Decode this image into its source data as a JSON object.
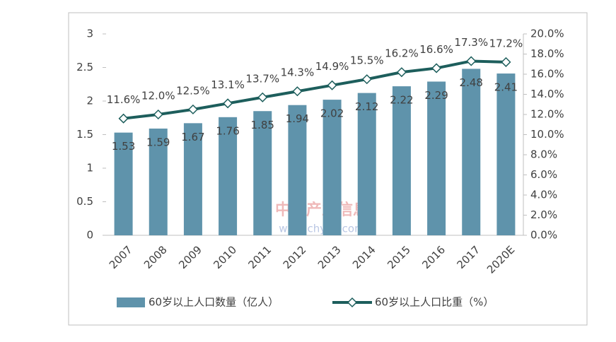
{
  "chart_data": {
    "type": "bar",
    "categories": [
      "2007",
      "2008",
      "2009",
      "2010",
      "2011",
      "2012",
      "2013",
      "2014",
      "2015",
      "2016",
      "2017",
      "2020E"
    ],
    "series": [
      {
        "name": "60岁以上人口数量（亿人）",
        "type": "bar",
        "color": "#5f93ab",
        "values": [
          1.53,
          1.59,
          1.67,
          1.76,
          1.85,
          1.94,
          2.02,
          2.12,
          2.22,
          2.29,
          2.48,
          2.41
        ]
      },
      {
        "name": "60岁以上人口比重（%）",
        "type": "line",
        "axis": "y2",
        "color": "#1d5e5c",
        "values": [
          11.6,
          12.0,
          12.5,
          13.1,
          13.7,
          14.3,
          14.9,
          15.5,
          16.2,
          16.6,
          17.3,
          17.2
        ],
        "value_labels": [
          "11.6%",
          "12.0%",
          "12.5%",
          "13.1%",
          "13.7%",
          "14.3%",
          "14.9%",
          "15.5%",
          "16.2%",
          "16.6%",
          "17.3%",
          "17.2%"
        ]
      }
    ],
    "ylim": [
      0,
      3
    ],
    "yticks": [
      0,
      0.5,
      1,
      1.5,
      2,
      2.5,
      3
    ],
    "y2lim": [
      0,
      20
    ],
    "y2ticks": [
      {
        "value": 0,
        "label": "0.0%"
      },
      {
        "value": 2,
        "label": "2.0%"
      },
      {
        "value": 4,
        "label": "4.0%"
      },
      {
        "value": 6,
        "label": "6.0%"
      },
      {
        "value": 8,
        "label": "8.0%"
      },
      {
        "value": 10,
        "label": "10.0%"
      },
      {
        "value": 12,
        "label": "12.0%"
      },
      {
        "value": 14,
        "label": "14.0%"
      },
      {
        "value": 16,
        "label": "16.0%"
      },
      {
        "value": 18,
        "label": "18.0%"
      },
      {
        "value": 20,
        "label": "20.0%"
      }
    ],
    "grid": false,
    "legend": "bottom",
    "watermark": [
      "中国产业信息",
      "www.chyxx.com"
    ]
  }
}
